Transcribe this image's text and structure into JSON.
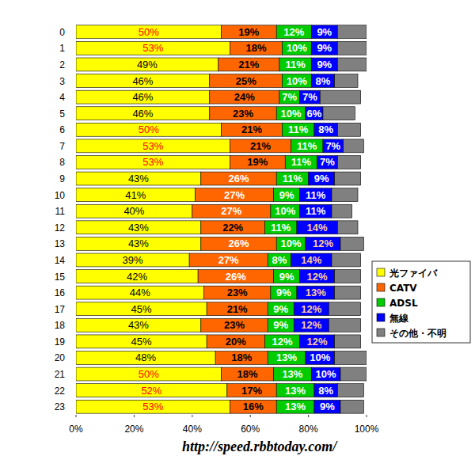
{
  "chart_data": {
    "type": "bar",
    "orientation": "horizontal",
    "stacked": true,
    "data_labels": true,
    "legend": "right",
    "grid": false,
    "annotation": "http://speed.rbbtoday.com/",
    "categories": [
      "0",
      "1",
      "2",
      "3",
      "4",
      "5",
      "6",
      "7",
      "8",
      "9",
      "10",
      "11",
      "12",
      "13",
      "14",
      "15",
      "16",
      "17",
      "18",
      "19",
      "20",
      "21",
      "22",
      "23"
    ],
    "xlim": [
      0,
      100
    ],
    "xticks": [
      {
        "value": 0,
        "label": "0%"
      },
      {
        "value": 20,
        "label": "20%"
      },
      {
        "value": 40,
        "label": "40%"
      },
      {
        "value": 60,
        "label": "60%"
      },
      {
        "value": 80,
        "label": "80%"
      },
      {
        "value": 100,
        "label": "100%"
      }
    ],
    "series": [
      {
        "name": "光ファイバ",
        "color": "#ffff00",
        "values": [
          50,
          53,
          49,
          46,
          46,
          46,
          50,
          53,
          53,
          43,
          41,
          40,
          43,
          43,
          39,
          42,
          44,
          45,
          43,
          45,
          48,
          50,
          52,
          53
        ],
        "value_labels": [
          "50%",
          "53%",
          "49%",
          "46%",
          "46%",
          "46%",
          "50%",
          "53%",
          "53%",
          "43%",
          "41%",
          "40%",
          "43%",
          "43%",
          "39%",
          "42%",
          "44%",
          "45%",
          "43%",
          "45%",
          "48%",
          "50%",
          "52%",
          "53%"
        ]
      },
      {
        "name": "CATV",
        "color": "#ff6600",
        "values": [
          19,
          18,
          21,
          25,
          24,
          23,
          21,
          21,
          19,
          26,
          27,
          27,
          22,
          26,
          27,
          26,
          23,
          21,
          23,
          20,
          18,
          18,
          17,
          16
        ],
        "value_labels": [
          "19%",
          "18%",
          "21%",
          "25%",
          "24%",
          "23%",
          "21%",
          "21%",
          "19%",
          "26%",
          "27%",
          "27%",
          "22%",
          "26%",
          "27%",
          "26%",
          "23%",
          "21%",
          "23%",
          "20%",
          "18%",
          "18%",
          "17%",
          "16%"
        ]
      },
      {
        "name": "ADSL",
        "color": "#00cc00",
        "values": [
          12,
          10,
          11,
          10,
          7,
          10,
          11,
          11,
          11,
          11,
          9,
          10,
          11,
          10,
          8,
          9,
          9,
          9,
          9,
          12,
          13,
          13,
          13,
          13
        ],
        "value_labels": [
          "12%",
          "10%",
          "11%",
          "10%",
          "7%",
          "10%",
          "11%",
          "11%",
          "11%",
          "11%",
          "9%",
          "10%",
          "11%",
          "10%",
          "8%",
          "9%",
          "9%",
          "9%",
          "9%",
          "12%",
          "13%",
          "13%",
          "13%",
          "13%"
        ]
      },
      {
        "name": "無線",
        "color": "#0000ff",
        "values": [
          9,
          9,
          9,
          8,
          7,
          6,
          8,
          7,
          7,
          9,
          11,
          11,
          14,
          12,
          14,
          12,
          13,
          12,
          12,
          12,
          10,
          10,
          8,
          9
        ],
        "value_labels": [
          "9%",
          "9%",
          "9%",
          "8%",
          "7%",
          "6%",
          "8%",
          "7%",
          "7%",
          "9%",
          "11%",
          "11%",
          "14%",
          "12%",
          "14%",
          "12%",
          "13%",
          "12%",
          "12%",
          "12%",
          "10%",
          "10%",
          "8%",
          "9%"
        ]
      },
      {
        "name": "その他・不明",
        "color": "#808080",
        "values": [
          10,
          10,
          10,
          8,
          14,
          11,
          8,
          7,
          8,
          9,
          9,
          7,
          7,
          8,
          10,
          9,
          9,
          11,
          11,
          9,
          11,
          9,
          9,
          8
        ]
      }
    ]
  }
}
